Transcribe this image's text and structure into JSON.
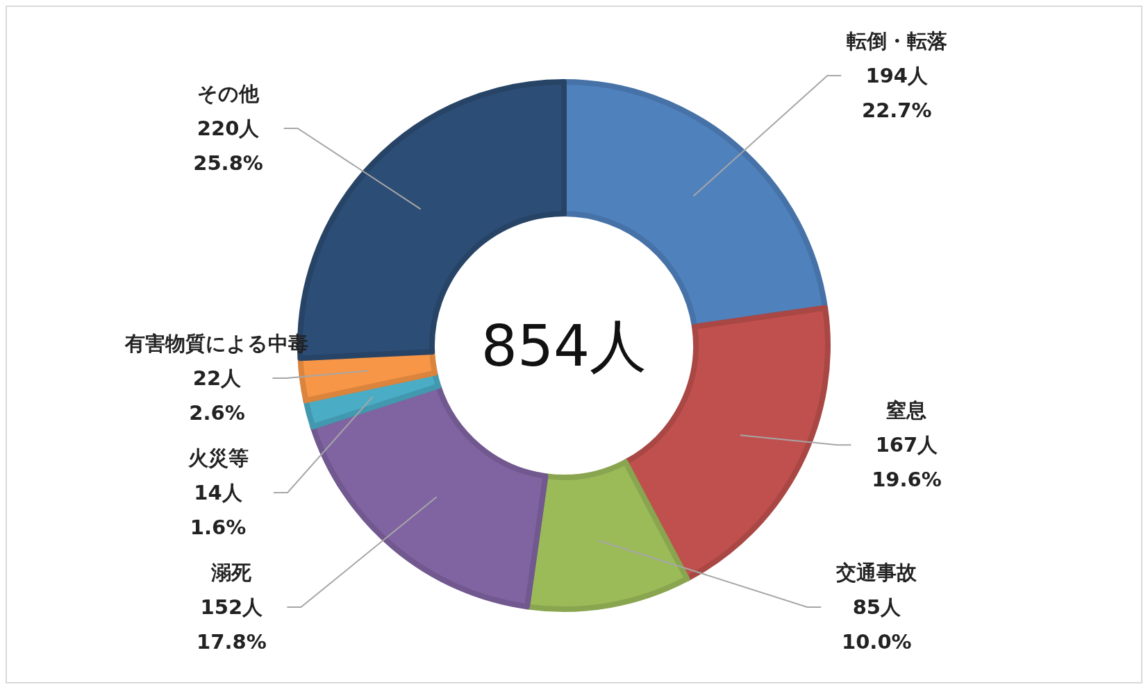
{
  "chart_data": {
    "type": "donut",
    "categories": [
      "転倒・転落",
      "窒息",
      "交通事故",
      "溺死",
      "火災等",
      "有害物質による中毒",
      "その他"
    ],
    "values": [
      194,
      167,
      85,
      152,
      14,
      22,
      220
    ],
    "colors": [
      "#4f81bd",
      "#c0504d",
      "#9bbb59",
      "#8064a2",
      "#4bacc6",
      "#f79646",
      "#2c4d75"
    ],
    "value_labels": [
      "194人\n22.7%",
      "167人\n19.6%",
      "85人\n10.0%",
      "152人\n17.8%",
      "14人\n1.6%",
      "22人\n2.6%",
      "220人\n25.8%"
    ],
    "annotations": [
      "854人"
    ]
  }
}
